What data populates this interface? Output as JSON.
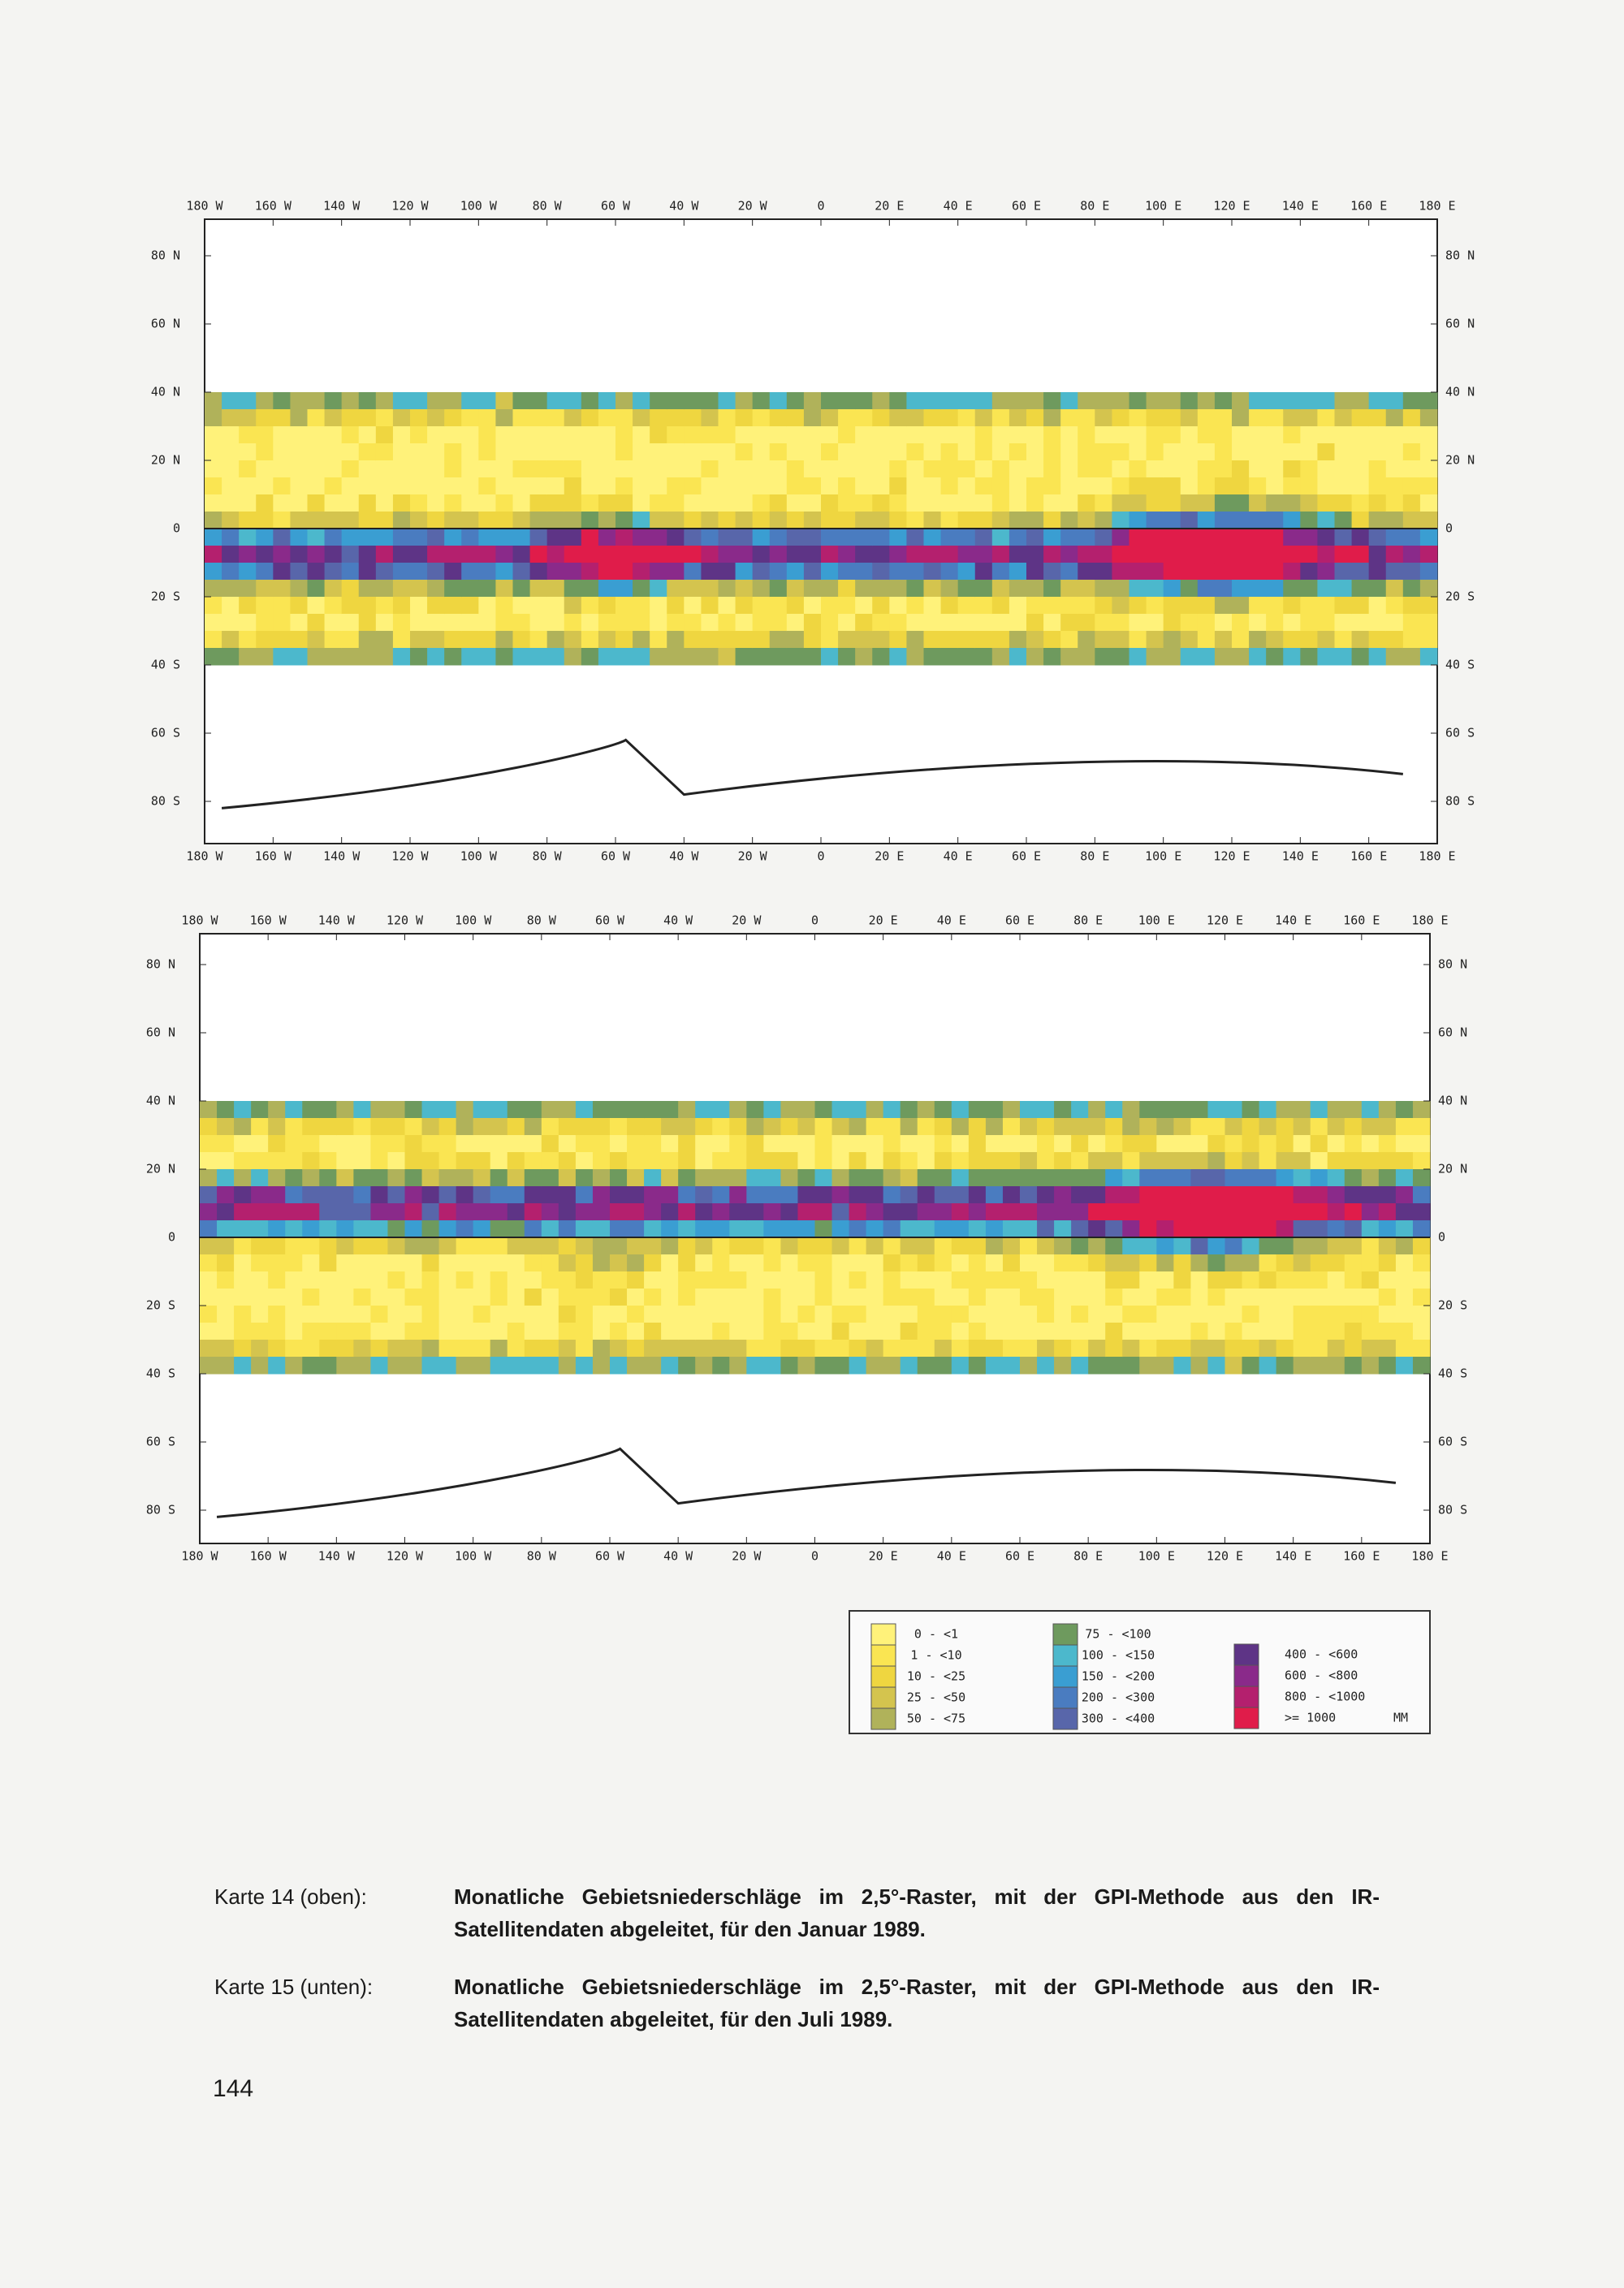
{
  "maps": {
    "lon_labels": [
      "180 W",
      "160 W",
      "140 W",
      "120 W",
      "100 W",
      "80 W",
      "60 W",
      "40 W",
      "20 W",
      "0",
      "20 E",
      "40 E",
      "60 E",
      "80 E",
      "100 E",
      "120 E",
      "140 E",
      "160 E",
      "180 E"
    ],
    "lat_labels_left": [
      "80 N",
      "60 N",
      "40 N",
      "20 N",
      "0",
      "20 S",
      "40 S",
      "60 S",
      "80 S"
    ],
    "lat_labels_right": [
      "80 N",
      "60 N",
      "40 N",
      "20 N",
      "0",
      "20 S",
      "40 S",
      "60 S",
      "80 S"
    ]
  },
  "legend": {
    "entries": [
      {
        "label": "0 - <1",
        "color": "#fff27a"
      },
      {
        "label": "1 - <10",
        "color": "#fae552"
      },
      {
        "label": "10 - <25",
        "color": "#efd640"
      },
      {
        "label": "25 - <50",
        "color": "#d4c44e"
      },
      {
        "label": "50 - <75",
        "color": "#b0b25a"
      },
      {
        "label": "75 - <100",
        "color": "#6e9a5e"
      },
      {
        "label": "100 - <150",
        "color": "#4cb8cc"
      },
      {
        "label": "150 - <200",
        "color": "#3a9ed2"
      },
      {
        "label": "200 - <300",
        "color": "#4a7cc0"
      },
      {
        "label": "300 - <400",
        "color": "#5866aa"
      },
      {
        "label": "400 - <600",
        "color": "#5e3486"
      },
      {
        "label": "600 - <800",
        "color": "#8a2a8a"
      },
      {
        "label": "800 - <1000",
        "color": "#b4206e"
      },
      {
        "label": ">= 1000",
        "color": "#e01c4a"
      }
    ],
    "unit": "MM"
  },
  "captions": [
    {
      "label": "Karte 14 (oben):",
      "text": "Monatliche Gebietsniederschläge im 2,5°-Raster, mit der GPI-Methode aus den IR-Satellitendaten abgeleitet, für den Januar 1989."
    },
    {
      "label": "Karte 15 (unten):",
      "text": "Monatliche Gebietsniederschläge im 2,5°-Raster, mit der GPI-Methode aus den IR-Satellitendaten abgeleitet, für den Juli 1989."
    }
  ],
  "page_number": "144"
}
